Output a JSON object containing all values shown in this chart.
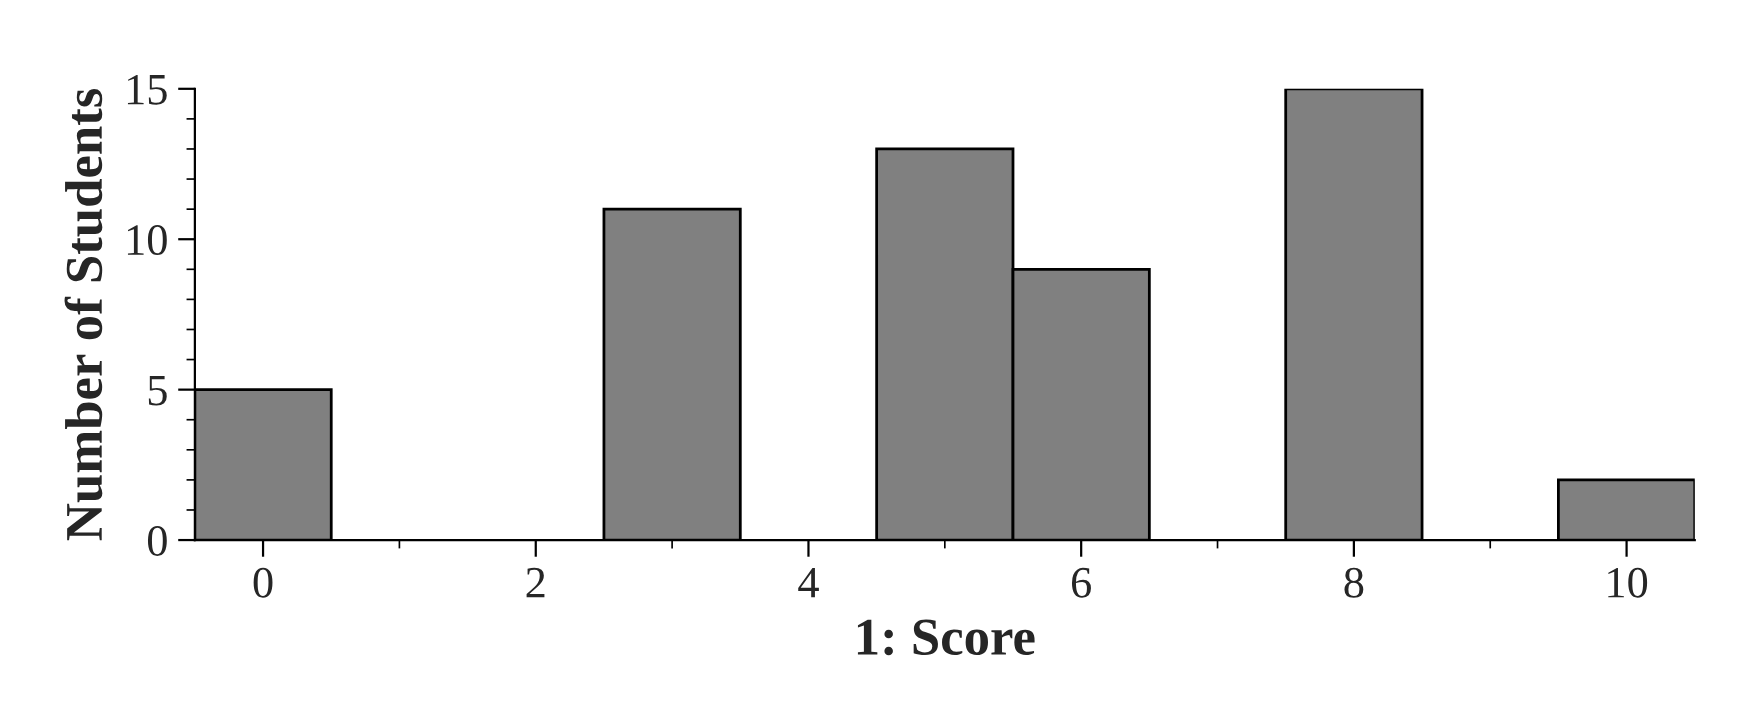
{
  "chart_data": {
    "type": "histogram",
    "xlabel": "1: Score",
    "ylabel": "Number of Students",
    "bins": [
      -0.5,
      0.5,
      1.5,
      2.5,
      3.5,
      4.5,
      5.5,
      6.5,
      7.5,
      8.5,
      9.5,
      10.5
    ],
    "values": [
      5,
      0,
      0,
      11,
      0,
      13,
      9,
      0,
      15,
      0,
      2
    ],
    "color": "#808080",
    "xlim": [
      -0.5,
      10.5
    ],
    "ylim": [
      0,
      15
    ],
    "xticks": [
      0,
      {
        "value": 1,
        "label": null
      },
      2,
      {
        "value": 3,
        "label": null
      },
      4,
      {
        "value": 5,
        "label": null
      },
      6,
      {
        "value": 7,
        "label": null
      },
      8,
      {
        "value": 9,
        "label": null
      },
      10
    ],
    "yticks": [
      0,
      {
        "value": 1,
        "label": null
      },
      {
        "value": 2,
        "label": null
      },
      {
        "value": 3,
        "label": null
      },
      {
        "value": 4,
        "label": null
      },
      5,
      {
        "value": 6,
        "label": null
      },
      {
        "value": 7,
        "label": null
      },
      {
        "value": 8,
        "label": null
      },
      {
        "value": 9,
        "label": null
      },
      10,
      {
        "value": 11,
        "label": null
      },
      {
        "value": 12,
        "label": null
      },
      {
        "value": 13,
        "label": null
      },
      {
        "value": 14,
        "label": null
      },
      15
    ],
    "grid": false
  }
}
